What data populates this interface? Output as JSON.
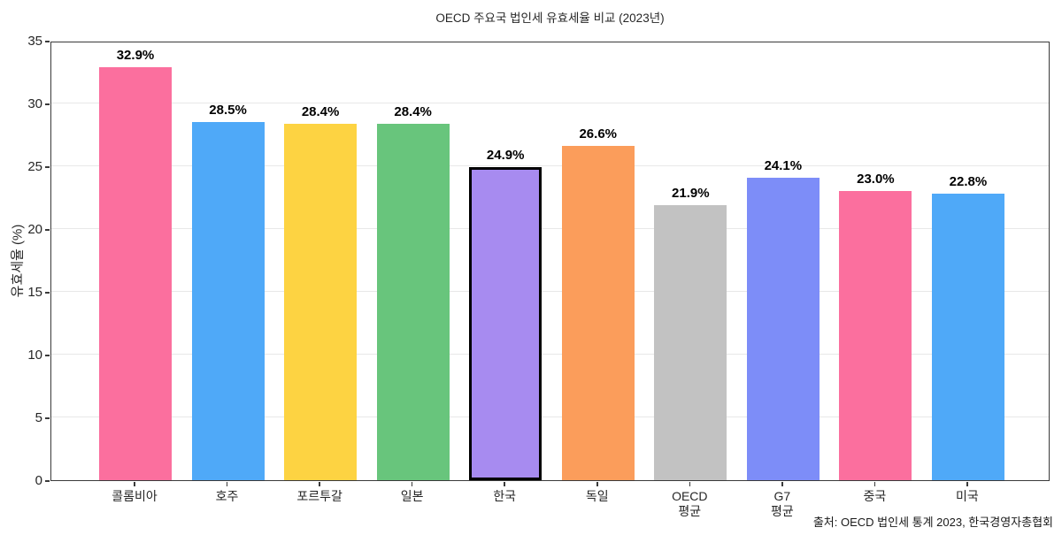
{
  "title": "OECD 주요국 법인세 유효세율 비교 (2023년)",
  "source_note": "출처: OECD 법인세 통계 2023, 한국경영자총협회",
  "y_axis_title": "유효세율 (%)",
  "chart_data": {
    "type": "bar",
    "title": "OECD 주요국 법인세 유효세율 비교 (2023년)",
    "xlabel": "",
    "ylabel": "유효세율 (%)",
    "ylim": [
      0,
      35
    ],
    "yticks": [
      0,
      5,
      10,
      15,
      20,
      25,
      30,
      35
    ],
    "grid": true,
    "legend": "none",
    "categories": [
      "콜롬비아",
      "호주",
      "포르투갈",
      "일본",
      "한국",
      "독일",
      "OECD\n평균",
      "G7\n평균",
      "중국",
      "미국"
    ],
    "values": [
      32.9,
      28.5,
      28.4,
      28.4,
      24.9,
      26.6,
      21.9,
      24.1,
      23.0,
      22.8
    ],
    "value_labels": [
      "32.9%",
      "28.5%",
      "28.4%",
      "28.4%",
      "24.9%",
      "26.6%",
      "21.9%",
      "24.1%",
      "23.0%",
      "22.8%"
    ],
    "bar_colors": [
      "#FB6F9E",
      "#4FA9F8",
      "#FDD342",
      "#68C57C",
      "#A78BF0",
      "#FB9D5B",
      "#C2C2C2",
      "#7D8DF8",
      "#FB6F9E",
      "#4FA9F8"
    ],
    "highlight_index": 4,
    "highlight_border_color": "#000000",
    "grid_color": "#e8e8e8",
    "spine_color": "#3a3a3a",
    "source_note": "출처: OECD 법인세 통계 2023, 한국경영자총협회"
  }
}
